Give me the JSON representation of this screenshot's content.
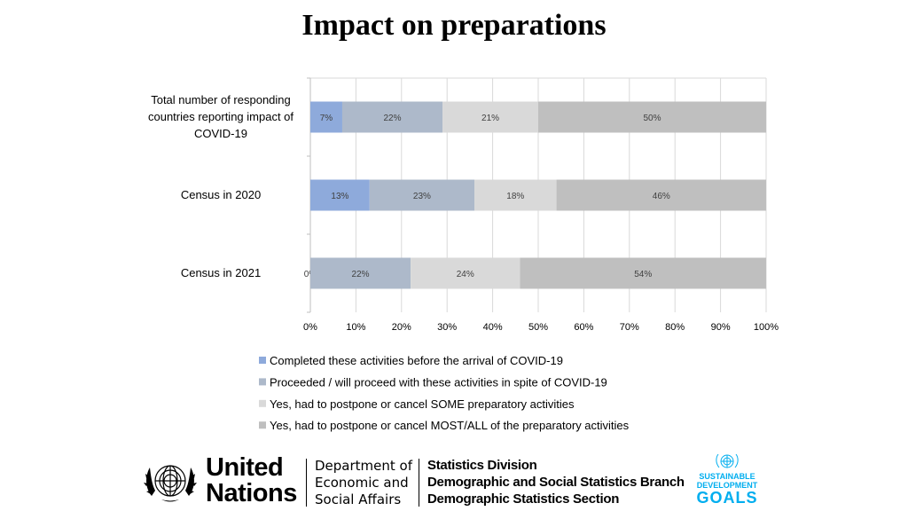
{
  "title": "Impact on preparations",
  "chart_data": {
    "type": "bar",
    "orientation": "horizontal",
    "stacked": "100%",
    "categories": [
      "Total number of responding countries reporting impact of COVID-19",
      "Census in 2020",
      "Census in 2021"
    ],
    "category_lines": [
      [
        "Total number of responding",
        "countries reporting impact of",
        "COVID-19"
      ],
      [
        "Census in 2020"
      ],
      [
        "Census in 2021"
      ]
    ],
    "series": [
      {
        "name": "Completed these activities before the arrival of COVID-19",
        "values": [
          7,
          13,
          0
        ],
        "labels": [
          "7%",
          "13%",
          "0%"
        ],
        "color": "#8eaadb"
      },
      {
        "name": "Proceeded / will proceed with these activities in spite of COVID-19",
        "values": [
          22,
          23,
          22
        ],
        "labels": [
          "22%",
          "23%",
          "22%"
        ],
        "color": "#adb9ca"
      },
      {
        "name": "Yes, had to postpone or cancel SOME preparatory activities",
        "values": [
          21,
          18,
          24
        ],
        "labels": [
          "21%",
          "18%",
          "24%"
        ],
        "color": "#d9d9d9"
      },
      {
        "name": "Yes, had to postpone or cancel MOST/ALL of the preparatory activities",
        "values": [
          50,
          46,
          54
        ],
        "labels": [
          "50%",
          "46%",
          "54%"
        ],
        "color": "#bfbfbf"
      }
    ],
    "x_ticks": [
      "0%",
      "10%",
      "20%",
      "30%",
      "40%",
      "50%",
      "60%",
      "70%",
      "80%",
      "90%",
      "100%"
    ],
    "xlim": [
      0,
      100
    ],
    "grid": true,
    "legend_position": "bottom"
  },
  "footer": {
    "org_line1": "United",
    "org_line2": "Nations",
    "dept_line1": "Department of",
    "dept_line2": "Economic and",
    "dept_line3": "Social Affairs",
    "division_line1": "Statistics Division",
    "division_line2": "Demographic and Social Statistics Branch",
    "division_line3": "Demographic Statistics Section",
    "sdg_line1": "SUSTAINABLE",
    "sdg_line2": "DEVELOPMENT",
    "sdg_line3": "GOALS",
    "sdg_color": "#00aeef"
  }
}
